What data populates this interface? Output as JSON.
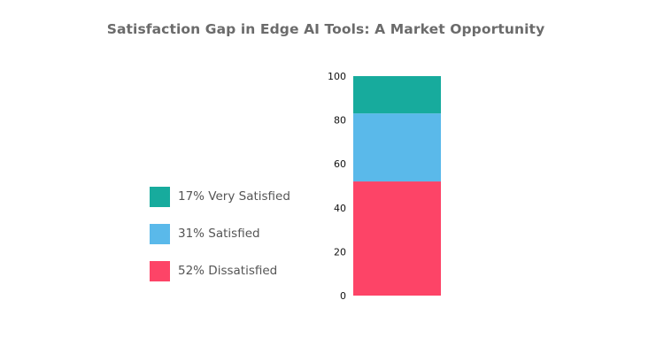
{
  "chart_data": {
    "type": "bar",
    "stacked": true,
    "title": "Satisfaction Gap in Edge AI Tools: A Market Opportunity",
    "categories": [
      ""
    ],
    "series": [
      {
        "name": "52% Dissatisfied",
        "values": [
          52
        ],
        "color": "#fd4467"
      },
      {
        "name": "31% Satisfied",
        "values": [
          31
        ],
        "color": "#5ab9ea"
      },
      {
        "name": "17% Very Satisfied",
        "values": [
          17
        ],
        "color": "#17ab9d"
      }
    ],
    "ylim": [
      0,
      100
    ],
    "yticks": [
      "0",
      "20",
      "40",
      "60",
      "80",
      "100"
    ],
    "xlabel": "",
    "ylabel": "",
    "grid": false,
    "legend_position": "left"
  },
  "legend": [
    {
      "label": "17% Very Satisfied",
      "color": "#17ab9d"
    },
    {
      "label": "31% Satisfied",
      "color": "#5ab9ea"
    },
    {
      "label": "52% Dissatisfied",
      "color": "#fd4467"
    }
  ]
}
